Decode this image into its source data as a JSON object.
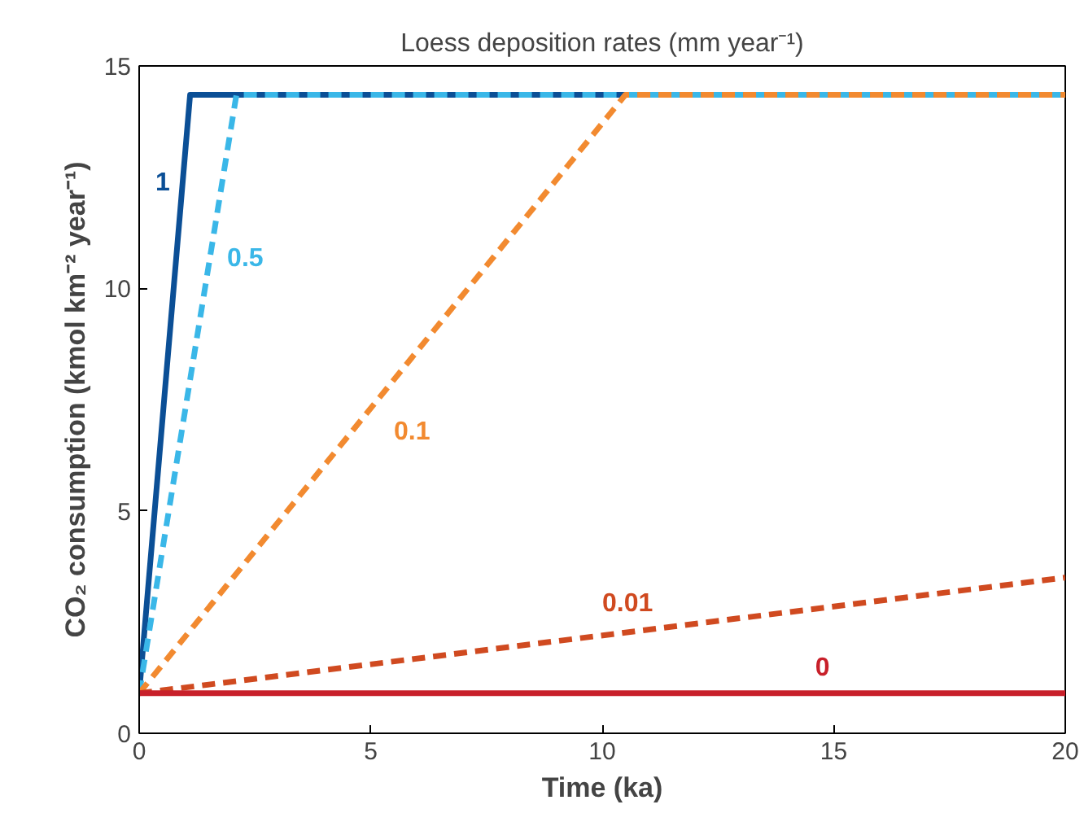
{
  "chart_data": {
    "type": "line",
    "title": "Loess deposition rates (mm year⁻¹)",
    "xlabel": "Time (ka)",
    "ylabel": "CO₂ consumption (kmol km⁻² year⁻¹)",
    "xlim": [
      0,
      20
    ],
    "ylim": [
      0,
      15
    ],
    "xticks": [
      0,
      5,
      10,
      15,
      20
    ],
    "yticks": [
      0,
      5,
      10,
      15
    ],
    "grid": false,
    "marker": "none",
    "series": [
      {
        "name": "1",
        "color": "#0b4f96",
        "line_style": "solid",
        "x": [
          0,
          1.1,
          20
        ],
        "values": [
          0.9,
          14.35,
          14.35
        ]
      },
      {
        "name": "0.5",
        "color": "#3ab7e8",
        "line_style": "dashed",
        "x": [
          0,
          2.1,
          20
        ],
        "values": [
          0.9,
          14.35,
          14.35
        ]
      },
      {
        "name": "0.1",
        "color": "#f28a30",
        "line_style": "dashed",
        "x": [
          0,
          10.5,
          20
        ],
        "values": [
          0.9,
          14.35,
          14.35
        ]
      },
      {
        "name": "0.01",
        "color": "#d04a20",
        "line_style": "dashed",
        "x": [
          0,
          20
        ],
        "values": [
          0.9,
          3.5
        ]
      },
      {
        "name": "0",
        "color": "#c8202a",
        "line_style": "solid",
        "x": [
          0,
          20
        ],
        "values": [
          0.9,
          0.9
        ]
      }
    ]
  }
}
